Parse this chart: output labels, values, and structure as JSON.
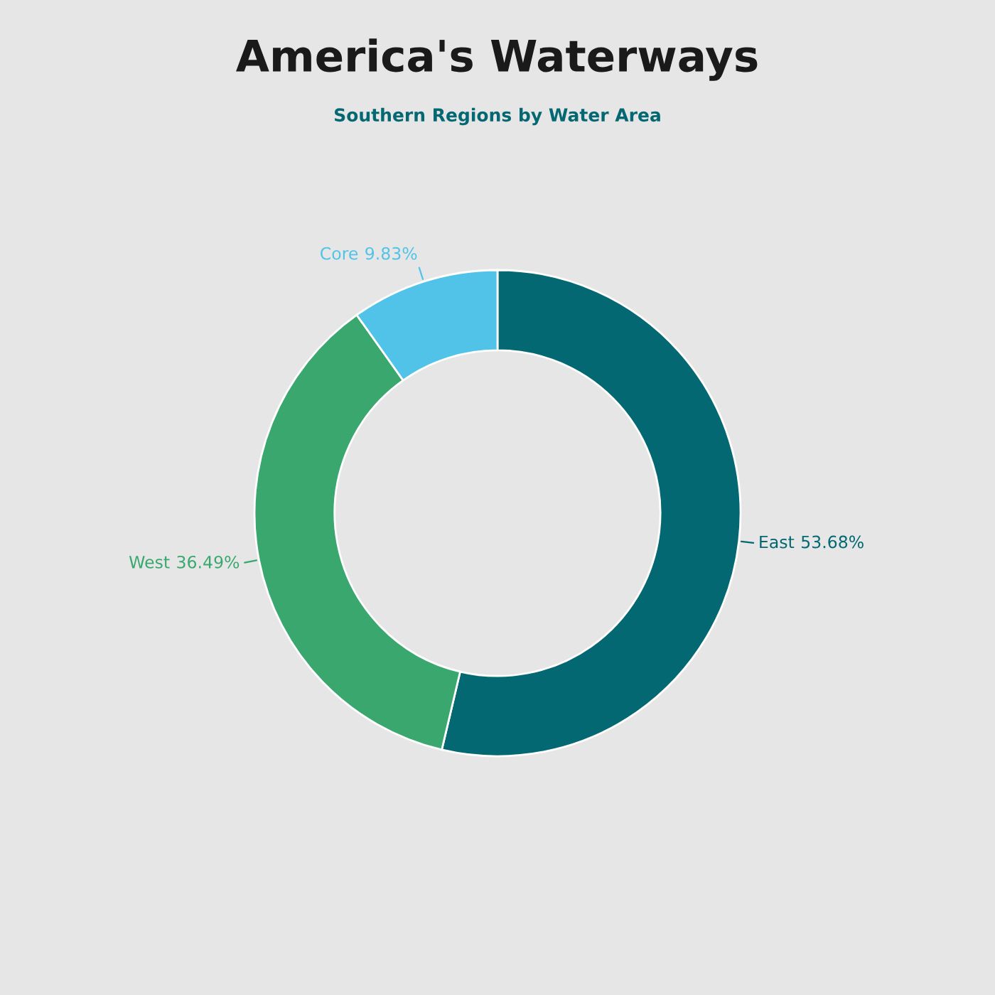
{
  "chart_data": {
    "type": "donut",
    "title": "America's Waterways",
    "subtitle": "Southern Regions by Water Area",
    "categories": [
      "East",
      "West",
      "Core"
    ],
    "values": [
      53.68,
      36.49,
      9.83
    ],
    "colors": [
      "#036872",
      "#3aa86e",
      "#52c3e8"
    ],
    "value_labels": [
      "53.68%",
      "36.49%",
      "9.83%"
    ],
    "legend": false
  }
}
